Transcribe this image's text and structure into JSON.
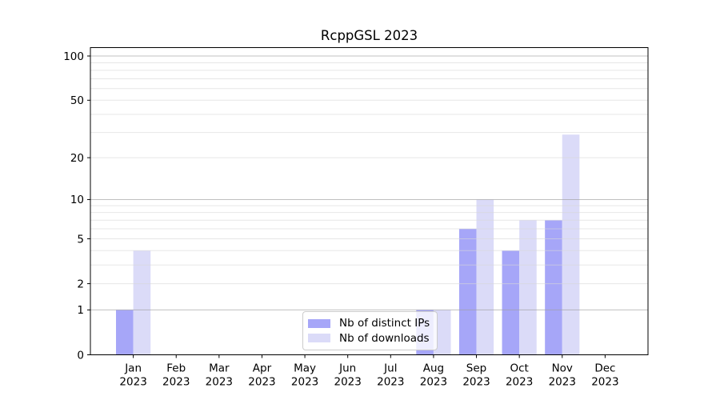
{
  "chart_data": {
    "type": "bar",
    "title": "RcppGSL 2023",
    "categories": [
      {
        "month": "Jan",
        "year": "2023"
      },
      {
        "month": "Feb",
        "year": "2023"
      },
      {
        "month": "Mar",
        "year": "2023"
      },
      {
        "month": "Apr",
        "year": "2023"
      },
      {
        "month": "May",
        "year": "2023"
      },
      {
        "month": "Jun",
        "year": "2023"
      },
      {
        "month": "Jul",
        "year": "2023"
      },
      {
        "month": "Aug",
        "year": "2023"
      },
      {
        "month": "Sep",
        "year": "2023"
      },
      {
        "month": "Oct",
        "year": "2023"
      },
      {
        "month": "Nov",
        "year": "2023"
      },
      {
        "month": "Dec",
        "year": "2023"
      }
    ],
    "series": [
      {
        "name": "Nb of distinct IPs",
        "color": "#a6a6f8",
        "values": [
          1,
          0,
          0,
          0,
          0,
          0,
          0,
          1,
          6,
          4,
          7,
          0
        ]
      },
      {
        "name": "Nb of downloads",
        "color": "#dbdbf8",
        "values": [
          4,
          0,
          0,
          0,
          0,
          0,
          0,
          1,
          10,
          7,
          29,
          0
        ]
      }
    ],
    "yscale": "log1p",
    "ylim": [
      0,
      100
    ],
    "ytick_labels": [
      0,
      1,
      2,
      5,
      10,
      20,
      50,
      100
    ],
    "major_gridlines": [
      1,
      10,
      100
    ],
    "minor_gridlines": [
      2,
      3,
      4,
      5,
      6,
      7,
      8,
      9,
      20,
      30,
      40,
      50,
      60,
      70,
      80,
      90
    ],
    "grid": true,
    "legend_position": "lower center",
    "colors": {
      "background": "#ffffff",
      "axis": "#000000",
      "major_grid": "#9e9e9e",
      "minor_grid": "#d7d7d7"
    }
  }
}
